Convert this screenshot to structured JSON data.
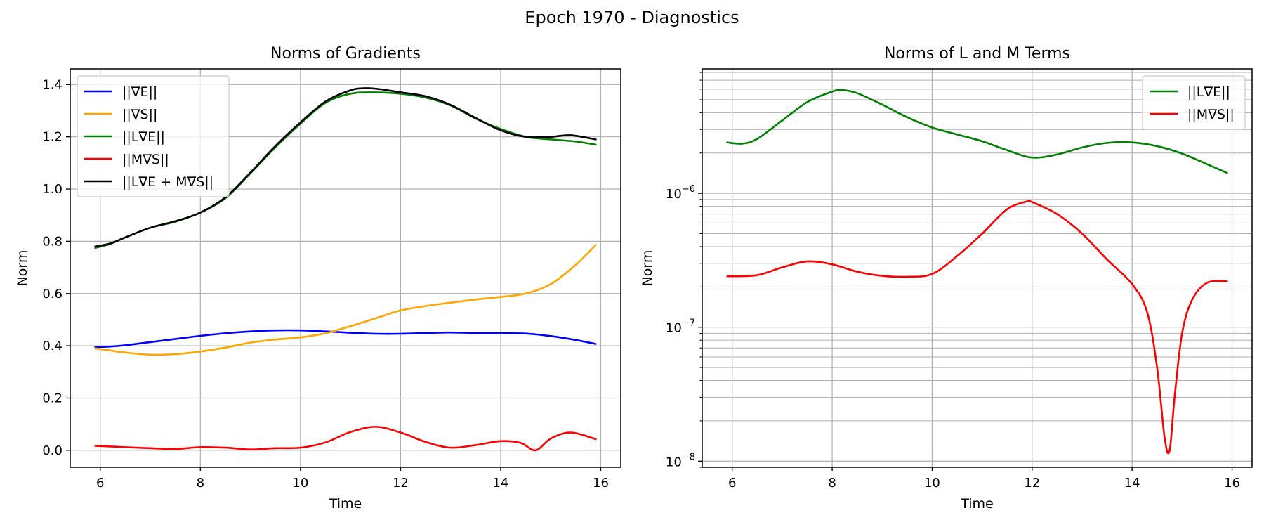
{
  "figure": {
    "title": "Epoch 1970 - Diagnostics"
  },
  "chart_data": [
    {
      "type": "line",
      "title": "Norms of Gradients",
      "xlabel": "Time",
      "ylabel": "Norm",
      "xlim": [
        5.4,
        16.4
      ],
      "ylim": [
        -0.065,
        1.46
      ],
      "yscale": "linear",
      "grid": true,
      "legend_position": "top-left",
      "xticks": [
        6,
        8,
        10,
        12,
        14,
        16
      ],
      "yticks": [
        0.0,
        0.2,
        0.4,
        0.6,
        0.8,
        1.0,
        1.2,
        1.4
      ],
      "ytick_labels": [
        "0.0",
        "0.2",
        "0.4",
        "0.6",
        "0.8",
        "1.0",
        "1.2",
        "1.4"
      ],
      "series": [
        {
          "name": "||∇E||",
          "color": "#0000ff",
          "x": [
            5.9,
            6.2,
            6.5,
            7.0,
            7.5,
            8.0,
            8.5,
            9.0,
            9.5,
            10.0,
            10.5,
            11.0,
            11.5,
            12.0,
            12.5,
            13.0,
            13.5,
            14.0,
            14.5,
            15.0,
            15.5,
            15.9
          ],
          "y": [
            0.395,
            0.397,
            0.402,
            0.414,
            0.426,
            0.438,
            0.448,
            0.455,
            0.459,
            0.459,
            0.455,
            0.45,
            0.446,
            0.446,
            0.449,
            0.451,
            0.449,
            0.448,
            0.447,
            0.437,
            0.422,
            0.407
          ]
        },
        {
          "name": "||∇S||",
          "color": "#ffa500",
          "x": [
            5.9,
            6.2,
            6.5,
            7.0,
            7.5,
            8.0,
            8.5,
            9.0,
            9.5,
            10.0,
            10.5,
            11.0,
            11.5,
            12.0,
            12.5,
            13.0,
            13.5,
            14.0,
            14.5,
            15.0,
            15.5,
            15.9
          ],
          "y": [
            0.39,
            0.382,
            0.374,
            0.366,
            0.368,
            0.378,
            0.393,
            0.412,
            0.424,
            0.432,
            0.448,
            0.475,
            0.505,
            0.535,
            0.552,
            0.565,
            0.577,
            0.587,
            0.6,
            0.636,
            0.71,
            0.786
          ]
        },
        {
          "name": "||L∇E||",
          "color": "#008000",
          "x": [
            5.9,
            6.2,
            6.5,
            7.0,
            7.5,
            8.0,
            8.5,
            9.0,
            9.5,
            10.0,
            10.5,
            11.0,
            11.5,
            12.0,
            12.5,
            13.0,
            13.5,
            14.0,
            14.5,
            15.0,
            15.5,
            15.9
          ],
          "y": [
            0.775,
            0.79,
            0.815,
            0.852,
            0.875,
            0.91,
            0.965,
            1.06,
            1.16,
            1.25,
            1.33,
            1.365,
            1.37,
            1.365,
            1.35,
            1.32,
            1.27,
            1.23,
            1.2,
            1.19,
            1.182,
            1.17
          ]
        },
        {
          "name": "||M∇S||",
          "color": "#ff0000",
          "x": [
            5.9,
            6.5,
            7.0,
            7.5,
            8.0,
            8.5,
            9.0,
            9.5,
            10.0,
            10.5,
            11.0,
            11.5,
            12.0,
            12.5,
            13.0,
            13.5,
            14.0,
            14.4,
            14.7,
            15.0,
            15.4,
            15.9
          ],
          "y": [
            0.017,
            0.012,
            0.008,
            0.005,
            0.012,
            0.01,
            0.003,
            0.008,
            0.01,
            0.03,
            0.07,
            0.09,
            0.068,
            0.032,
            0.01,
            0.02,
            0.035,
            0.028,
            0.0,
            0.045,
            0.068,
            0.043
          ]
        },
        {
          "name": "||L∇E + M∇S||",
          "color": "#000000",
          "x": [
            5.9,
            6.2,
            6.5,
            7.0,
            7.5,
            8.0,
            8.5,
            9.0,
            9.5,
            10.0,
            10.5,
            11.0,
            11.3,
            11.6,
            12.0,
            12.5,
            13.0,
            13.5,
            14.0,
            14.5,
            15.0,
            15.4,
            15.9
          ],
          "y": [
            0.78,
            0.792,
            0.815,
            0.852,
            0.877,
            0.91,
            0.968,
            1.063,
            1.165,
            1.255,
            1.335,
            1.378,
            1.386,
            1.382,
            1.37,
            1.355,
            1.322,
            1.272,
            1.225,
            1.2,
            1.2,
            1.206,
            1.19
          ]
        }
      ]
    },
    {
      "type": "line",
      "title": "Norms of L and M Terms",
      "xlabel": "Time",
      "ylabel": "Norm",
      "xlim": [
        5.4,
        16.4
      ],
      "ylim": [
        9e-09,
        8.5e-06
      ],
      "yscale": "log",
      "grid": true,
      "legend_position": "top-right",
      "xticks": [
        6,
        8,
        10,
        12,
        14,
        16
      ],
      "yticks": [
        1e-08,
        1e-07,
        1e-06
      ],
      "ytick_labels": [
        {
          "base": "10",
          "exp": "−8"
        },
        {
          "base": "10",
          "exp": "−7"
        },
        {
          "base": "10",
          "exp": "−6"
        }
      ],
      "series": [
        {
          "name": "||L∇E||",
          "color": "#008000",
          "x": [
            5.9,
            6.2,
            6.5,
            7.0,
            7.5,
            8.0,
            8.2,
            8.5,
            9.0,
            9.5,
            10.0,
            10.5,
            11.0,
            11.5,
            12.0,
            12.5,
            13.0,
            13.5,
            14.0,
            14.5,
            15.0,
            15.5,
            15.9
          ],
          "y": [
            2.4e-06,
            2.35e-06,
            2.55e-06,
            3.5e-06,
            4.8e-06,
            5.75e-06,
            5.9e-06,
            5.6e-06,
            4.6e-06,
            3.7e-06,
            3.1e-06,
            2.75e-06,
            2.45e-06,
            2.1e-06,
            1.85e-06,
            1.95e-06,
            2.2e-06,
            2.38e-06,
            2.4e-06,
            2.25e-06,
            1.98e-06,
            1.65e-06,
            1.42e-06
          ]
        },
        {
          "name": "||M∇S||",
          "color": "#ff0000",
          "x": [
            5.9,
            6.5,
            7.0,
            7.5,
            8.0,
            8.5,
            9.0,
            9.5,
            10.0,
            10.5,
            11.0,
            11.5,
            11.9,
            12.0,
            12.5,
            13.0,
            13.5,
            14.0,
            14.3,
            14.5,
            14.65,
            14.75,
            14.85,
            15.0,
            15.2,
            15.5,
            15.9
          ],
          "y": [
            2.4e-07,
            2.45e-07,
            2.8e-07,
            3.1e-07,
            2.95e-07,
            2.6e-07,
            2.42e-07,
            2.38e-07,
            2.5e-07,
            3.4e-07,
            5e-07,
            7.6e-07,
            8.7e-07,
            8.6e-07,
            7e-07,
            5e-07,
            3.2e-07,
            2.1e-07,
            1.3e-07,
            5e-08,
            1.5e-08,
            1.2e-08,
            3e-08,
            9e-08,
            1.6e-07,
            2.15e-07,
            2.2e-07
          ]
        }
      ]
    }
  ]
}
